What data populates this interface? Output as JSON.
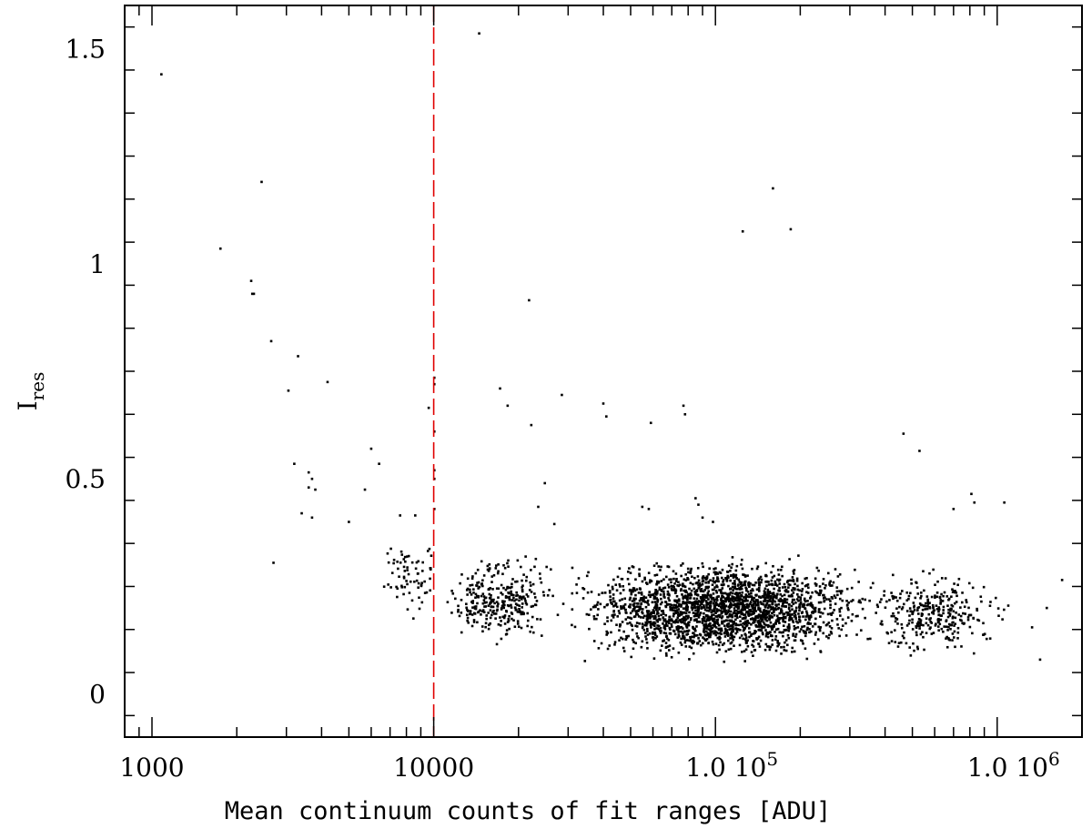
{
  "chart_data": {
    "type": "scatter",
    "title": "",
    "xlabel": "Mean continuum counts of fit ranges [ADU]",
    "ylabel_main": "I",
    "ylabel_sub": "res",
    "x_scale": "log",
    "xlim": [
      800,
      2000000
    ],
    "ylim": [
      -0.1,
      1.6
    ],
    "grid": false,
    "legend": "none",
    "x_tick_labels": [
      {
        "value": 1000,
        "text": "1000"
      },
      {
        "value": 10000,
        "text": "10000"
      },
      {
        "value": 100000,
        "text_mant": "1.0",
        "text_base": "10",
        "text_exp": "5"
      },
      {
        "value": 1000000,
        "text_mant": "1.0",
        "text_base": "10",
        "text_exp": "6"
      }
    ],
    "y_tick_labels": [
      {
        "value": 0,
        "text": "0"
      },
      {
        "value": 0.5,
        "text": "0.5"
      },
      {
        "value": 1,
        "text": "1"
      },
      {
        "value": 1.5,
        "text": "1.5"
      }
    ],
    "threshold_line": {
      "x": 10000,
      "color": "#e00000",
      "style": "dashed"
    },
    "series": [
      {
        "marker_color": "#000000",
        "outliers": [
          [
            1080,
            1.44
          ],
          [
            1750,
            1.035
          ],
          [
            2250,
            0.96
          ],
          [
            2270,
            0.93
          ],
          [
            2300,
            0.93
          ],
          [
            2450,
            1.19
          ],
          [
            2650,
            0.82
          ],
          [
            3050,
            0.705
          ],
          [
            3300,
            0.785
          ],
          [
            4200,
            0.725
          ],
          [
            9600,
            0.665
          ],
          [
            10050,
            0.735
          ],
          [
            10050,
            0.72
          ],
          [
            10050,
            0.61
          ],
          [
            10050,
            0.52
          ],
          [
            10050,
            0.5
          ],
          [
            10050,
            0.43
          ],
          [
            14500,
            1.535
          ],
          [
            17200,
            0.71
          ],
          [
            18300,
            0.67
          ],
          [
            21800,
            0.915
          ],
          [
            22200,
            0.625
          ],
          [
            28500,
            0.695
          ],
          [
            40000,
            0.675
          ],
          [
            41000,
            0.645
          ],
          [
            59000,
            0.63
          ],
          [
            77000,
            0.67
          ],
          [
            78000,
            0.65
          ],
          [
            125000,
            1.075
          ],
          [
            160000,
            1.175
          ],
          [
            185000,
            1.08
          ],
          [
            465000,
            0.605
          ],
          [
            530000,
            0.565
          ],
          [
            3200,
            0.535
          ],
          [
            3600,
            0.515
          ],
          [
            3700,
            0.5
          ],
          [
            3600,
            0.48
          ],
          [
            3800,
            0.475
          ],
          [
            6000,
            0.57
          ],
          [
            6400,
            0.535
          ],
          [
            24800,
            0.49
          ],
          [
            2700,
            0.305
          ],
          [
            3700,
            0.41
          ],
          [
            3400,
            0.42
          ],
          [
            5000,
            0.4
          ],
          [
            5700,
            0.475
          ],
          [
            7600,
            0.415
          ],
          [
            8600,
            0.415
          ],
          [
            23500,
            0.435
          ],
          [
            26800,
            0.395
          ],
          [
            55000,
            0.435
          ],
          [
            58000,
            0.43
          ],
          [
            85000,
            0.455
          ],
          [
            87000,
            0.44
          ],
          [
            90000,
            0.41
          ],
          [
            98000,
            0.4
          ],
          [
            700000,
            0.43
          ],
          [
            810000,
            0.465
          ],
          [
            830000,
            0.445
          ],
          [
            1060000,
            0.445
          ],
          [
            1420000,
            0.08
          ],
          [
            1500000,
            0.2
          ],
          [
            1700000,
            0.265
          ],
          [
            1330000,
            0.155
          ]
        ],
        "clusters": [
          {
            "xmin": 6000,
            "xmax": 12000,
            "ymin": 0.17,
            "ymax": 0.38,
            "n": 70,
            "seed": 11
          },
          {
            "xmin": 10000,
            "xmax": 30000,
            "ymin": 0.1,
            "ymax": 0.34,
            "n": 320,
            "seed": 23
          },
          {
            "xmin": 25000,
            "xmax": 450000,
            "ymin": 0.06,
            "ymax": 0.33,
            "n": 2300,
            "seed": 37
          },
          {
            "xmin": 300000,
            "xmax": 1200000,
            "ymin": 0.07,
            "ymax": 0.3,
            "n": 320,
            "seed": 51
          }
        ]
      }
    ]
  }
}
